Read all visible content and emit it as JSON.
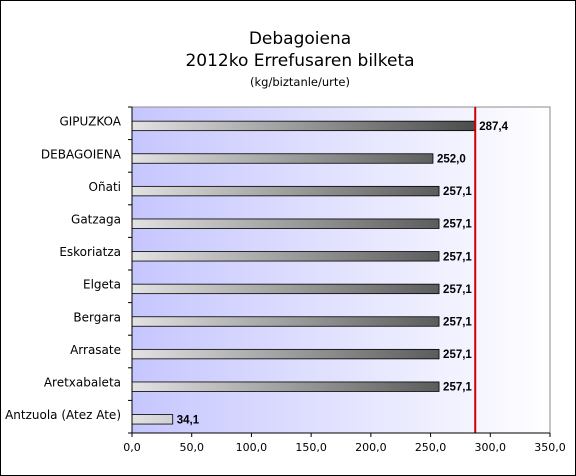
{
  "chart_data": {
    "type": "bar",
    "orientation": "horizontal",
    "title": "Debagoiena",
    "subtitle": "2012ko Errefusaren bilketa",
    "unit_label": "(kg/biztanle/urte)",
    "categories": [
      "GIPUZKOA",
      "DEBAGOIENA",
      "Oñati",
      "Gatzaga",
      "Eskoriatza",
      "Elgeta",
      "Bergara",
      "Arrasate",
      "Aretxabaleta",
      "Antzuola (Atez Ate)"
    ],
    "values": [
      287.4,
      252.0,
      257.1,
      257.1,
      257.1,
      257.1,
      257.1,
      257.1,
      257.1,
      34.1
    ],
    "value_labels": [
      "287,4",
      "252,0",
      "257,1",
      "257,1",
      "257,1",
      "257,1",
      "257,1",
      "257,1",
      "257,1",
      "34,1"
    ],
    "xlim": [
      0,
      350
    ],
    "x_ticks": [
      0,
      50,
      100,
      150,
      200,
      250,
      300,
      350
    ],
    "x_tick_labels": [
      "0,0",
      "50,0",
      "100,0",
      "150,0",
      "200,0",
      "250,0",
      "300,0",
      "350,0"
    ],
    "reference_line": {
      "value": 287.4,
      "color": "#cc0000"
    },
    "grid": false,
    "legend": "none",
    "colors": {
      "plot_bg_left": "#c6c6ff",
      "plot_bg_right": "#ffffff",
      "bar_light": "#e2e2e2",
      "bar_dark": "#4a4a4a",
      "reference": "#cc0000"
    }
  }
}
